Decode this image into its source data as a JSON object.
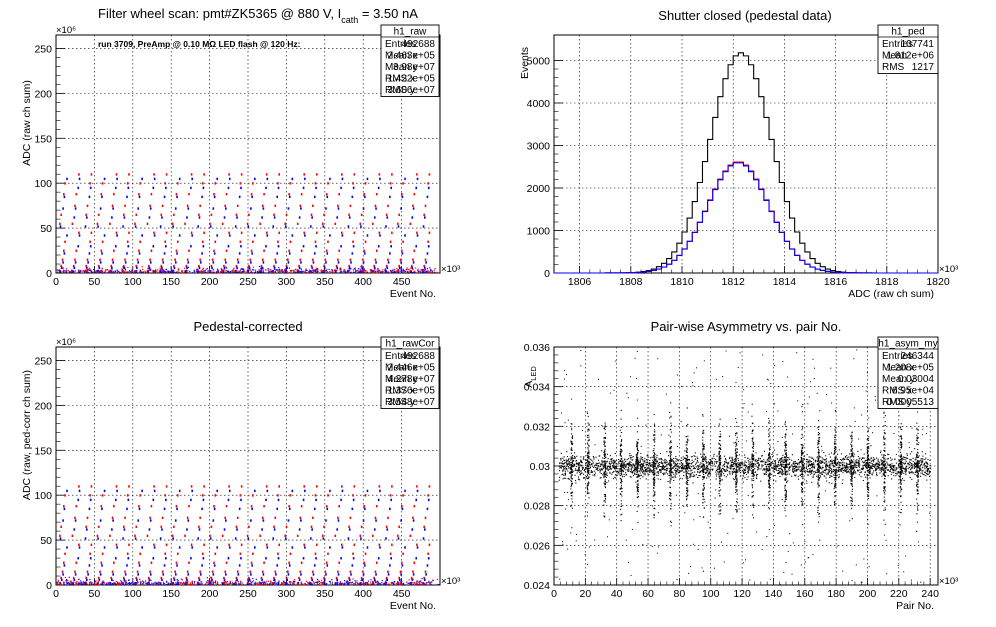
{
  "chart_data": [
    {
      "type": "scatter",
      "title_main": "Filter wheel scan: pmt#ZK5365 @   880 V, I",
      "title_sub": "cath",
      "title_tail": " = 3.50 nA",
      "annotation": "run 3709, PreAmp @ 0.10 MΩ LED flash @  120 Hz:",
      "xlabel": "Event No.",
      "ylabel": "ADC (raw ch sum)",
      "x_multiplier": "×10³",
      "y_multiplier": "×10⁶",
      "xlim": [
        0,
        500
      ],
      "ylim": [
        0,
        265
      ],
      "xticks": [
        0,
        50,
        100,
        150,
        200,
        250,
        300,
        350,
        400,
        450
      ],
      "yticks": [
        0,
        50,
        100,
        150,
        200,
        250
      ],
      "grid": true,
      "stats": {
        "name": "h1_raw",
        "rows": [
          [
            "Entries",
            "492688"
          ],
          [
            "Mean x",
            "2.463e+05"
          ],
          [
            "Mean y",
            "3.98e+07"
          ],
          [
            "RMS x",
            "1.422e+05"
          ],
          [
            "RMS y",
            "3.606e+07"
          ]
        ]
      },
      "series": [
        {
          "color": "#ff0000",
          "levels": [
            2,
            8,
            15,
            25,
            35,
            45,
            55,
            65,
            75,
            88,
            100,
            110
          ]
        },
        {
          "color": "#0000ff",
          "levels": [
            2,
            6,
            12,
            22,
            30,
            42,
            52,
            62,
            72,
            85,
            95,
            105
          ]
        }
      ]
    },
    {
      "type": "line",
      "title": "Shutter closed (pedestal data)",
      "xlabel": "ADC (raw ch sum)",
      "ylabel": "Events",
      "x_multiplier": "×10³",
      "xlim": [
        1805,
        1820
      ],
      "ylim": [
        0,
        5600
      ],
      "xticks": [
        1806,
        1808,
        1810,
        1812,
        1814,
        1816,
        1818,
        1820
      ],
      "yticks": [
        0,
        1000,
        2000,
        3000,
        4000,
        5000
      ],
      "grid": true,
      "stats": {
        "name": "h1_ped",
        "rows": [
          [
            "Entries",
            "107741"
          ],
          [
            "Mean",
            "1.812e+06"
          ],
          [
            "RMS",
            "1217"
          ]
        ]
      },
      "series": [
        {
          "color": "#000000",
          "mean": 1812.3,
          "sigma": 1.2,
          "peak": 5180
        },
        {
          "color": "#ff0000",
          "mean": 1812.2,
          "sigma": 1.2,
          "peak": 2620
        },
        {
          "color": "#0000ff",
          "mean": 1812.2,
          "sigma": 1.2,
          "peak": 2600
        }
      ]
    },
    {
      "type": "scatter",
      "title": "Pedestal-corrected",
      "xlabel": "Event No.",
      "ylabel": "ADC (raw, ped-corr ch sum)",
      "x_multiplier": "×10³",
      "y_multiplier": "×10⁶",
      "xlim": [
        0,
        500
      ],
      "ylim": [
        0,
        265
      ],
      "xticks": [
        0,
        50,
        100,
        150,
        200,
        250,
        300,
        350,
        400,
        450
      ],
      "yticks": [
        0,
        50,
        100,
        150,
        200,
        250
      ],
      "grid": true,
      "stats": {
        "name": "h1_rawCor",
        "rows": [
          [
            "Entries",
            "492688"
          ],
          [
            "Mean x",
            "2.446e+05"
          ],
          [
            "Mean y",
            "4.278e+07"
          ],
          [
            "RMS x",
            "1.376e+05"
          ],
          [
            "RMS y",
            "3.548e+07"
          ]
        ]
      },
      "series": [
        {
          "color": "#ff0000",
          "levels": [
            2,
            8,
            15,
            25,
            35,
            45,
            55,
            65,
            75,
            88,
            100,
            110
          ]
        },
        {
          "color": "#0000ff",
          "levels": [
            2,
            6,
            12,
            22,
            30,
            42,
            52,
            62,
            72,
            85,
            95,
            105
          ]
        }
      ]
    },
    {
      "type": "scatter",
      "title": "Pair-wise Asymmetry vs. pair No.",
      "xlabel": "Pair No.",
      "ylabel_main": "A",
      "ylabel_sub": "LED",
      "x_multiplier": "×10³",
      "xlim": [
        0,
        245
      ],
      "ylim": [
        0.024,
        0.036
      ],
      "xticks": [
        0,
        20,
        40,
        60,
        80,
        100,
        120,
        140,
        160,
        180,
        200,
        220,
        240
      ],
      "yticks": [
        0.024,
        0.026,
        0.028,
        0.03,
        0.032,
        0.034,
        0.036
      ],
      "grid": true,
      "stats": {
        "name": "h1_asym_my",
        "rows": [
          [
            "Entries",
            "246344"
          ],
          [
            "Mean x",
            "1.208e+05"
          ],
          [
            "Mean y",
            "0.03004"
          ],
          [
            "RMS x",
            "6.95e+04"
          ],
          [
            "RMS y",
            "0.0005513"
          ]
        ]
      },
      "series": [
        {
          "color": "#000000",
          "band_center": 0.03,
          "band_halfwidth": 0.0005,
          "spike_period": 10.5,
          "spike_extent": 0.0022
        }
      ]
    }
  ]
}
